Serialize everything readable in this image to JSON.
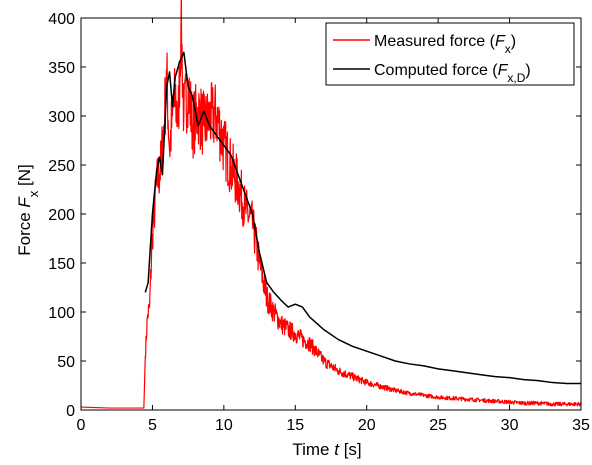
{
  "chart_data": {
    "type": "line",
    "xlabel": {
      "prefix": "Time  ",
      "var": "t",
      "unit": "  [s]"
    },
    "ylabel": {
      "prefix": "Force  ",
      "var": "F",
      "sub": "x",
      "unit": "  [N]"
    },
    "xlim": [
      0,
      35
    ],
    "ylim": [
      0,
      400
    ],
    "x_ticks": [
      "0",
      "5",
      "10",
      "15",
      "20",
      "25",
      "30",
      "35"
    ],
    "y_ticks": [
      "0",
      "50",
      "100",
      "150",
      "200",
      "250",
      "300",
      "350",
      "400"
    ],
    "grid": false,
    "legend_position": "top-right",
    "legend": [
      {
        "label_prefix": "Measured force (",
        "var": "F",
        "sub": "x",
        "label_suffix": ")",
        "color": "#ff0000"
      },
      {
        "label_prefix": "Computed force (",
        "var": "F",
        "sub": "x,D",
        "label_suffix": ")",
        "color": "#000000"
      }
    ],
    "series": [
      {
        "color": "#ff0000",
        "noise_after_peak": true,
        "points": [
          [
            0,
            3
          ],
          [
            2,
            2
          ],
          [
            4.4,
            2
          ],
          [
            4.5,
            55
          ],
          [
            4.65,
            95
          ],
          [
            4.8,
            105
          ],
          [
            5.0,
            180
          ],
          [
            5.3,
            230
          ],
          [
            5.6,
            250
          ],
          [
            5.8,
            290
          ],
          [
            6.0,
            340
          ],
          [
            6.2,
            265
          ],
          [
            6.4,
            300
          ],
          [
            6.6,
            320
          ],
          [
            6.8,
            290
          ],
          [
            7.0,
            398
          ],
          [
            7.2,
            300
          ],
          [
            7.5,
            330
          ],
          [
            7.8,
            290
          ],
          [
            8.2,
            305
          ],
          [
            8.6,
            290
          ],
          [
            9.0,
            298
          ],
          [
            9.5,
            300
          ],
          [
            10.0,
            270
          ],
          [
            10.5,
            248
          ],
          [
            11.0,
            230
          ],
          [
            11.5,
            205
          ],
          [
            12.0,
            190
          ],
          [
            12.5,
            150
          ],
          [
            13.0,
            115
          ],
          [
            13.5,
            100
          ],
          [
            14.0,
            88
          ],
          [
            14.5,
            82
          ],
          [
            15.0,
            78
          ],
          [
            15.5,
            72
          ],
          [
            16.0,
            68
          ],
          [
            17,
            50
          ],
          [
            18,
            40
          ],
          [
            19,
            34
          ],
          [
            20,
            28
          ],
          [
            21,
            24
          ],
          [
            22,
            20
          ],
          [
            23,
            17
          ],
          [
            24,
            15
          ],
          [
            25,
            13
          ],
          [
            26,
            12
          ],
          [
            27,
            11
          ],
          [
            28,
            10
          ],
          [
            29,
            9
          ],
          [
            30,
            8
          ],
          [
            31,
            7
          ],
          [
            32,
            7
          ],
          [
            33,
            6
          ],
          [
            34,
            6
          ],
          [
            35,
            6
          ]
        ]
      },
      {
        "color": "#000000",
        "noise_after_peak": false,
        "points": [
          [
            4.5,
            120
          ],
          [
            4.7,
            130
          ],
          [
            5.0,
            200
          ],
          [
            5.3,
            245
          ],
          [
            5.5,
            258
          ],
          [
            5.7,
            240
          ],
          [
            6.0,
            330
          ],
          [
            6.2,
            345
          ],
          [
            6.4,
            310
          ],
          [
            6.6,
            340
          ],
          [
            6.9,
            355
          ],
          [
            7.2,
            365
          ],
          [
            7.5,
            330
          ],
          [
            7.8,
            320
          ],
          [
            8.2,
            290
          ],
          [
            8.6,
            305
          ],
          [
            9.0,
            290
          ],
          [
            9.5,
            280
          ],
          [
            10.0,
            270
          ],
          [
            10.5,
            260
          ],
          [
            11.0,
            240
          ],
          [
            11.5,
            220
          ],
          [
            12.0,
            200
          ],
          [
            12.5,
            160
          ],
          [
            13.0,
            130
          ],
          [
            13.5,
            120
          ],
          [
            14.0,
            112
          ],
          [
            14.5,
            105
          ],
          [
            15.0,
            108
          ],
          [
            15.5,
            105
          ],
          [
            16.0,
            95
          ],
          [
            17,
            82
          ],
          [
            18,
            72
          ],
          [
            19,
            65
          ],
          [
            20,
            60
          ],
          [
            21,
            55
          ],
          [
            22,
            50
          ],
          [
            23,
            47
          ],
          [
            24,
            45
          ],
          [
            25,
            42
          ],
          [
            26,
            40
          ],
          [
            27,
            38
          ],
          [
            28,
            36
          ],
          [
            29,
            34
          ],
          [
            30,
            33
          ],
          [
            31,
            31
          ],
          [
            32,
            30
          ],
          [
            33,
            28
          ],
          [
            34,
            27
          ],
          [
            35,
            27
          ]
        ]
      }
    ]
  }
}
